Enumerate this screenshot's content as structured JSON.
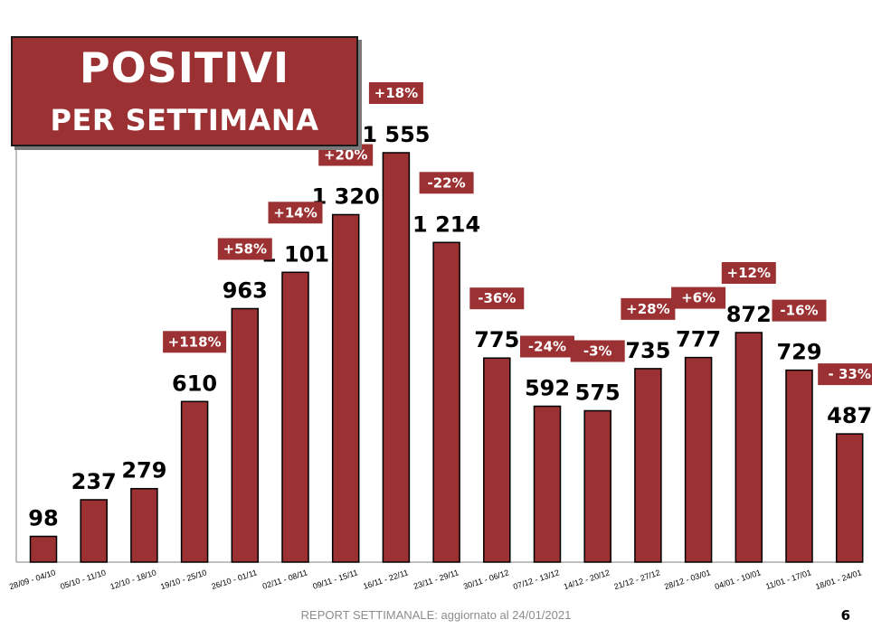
{
  "header": {
    "title_line1": "POSITIVI",
    "title_line2": "PER SETTIMANA"
  },
  "footer": {
    "text": "REPORT SETTIMANALE: aggiornato al 24/01/2021",
    "page_number": "6"
  },
  "colors": {
    "bar": "#9b3132",
    "badge": "#9b3132",
    "axis": "#808080"
  },
  "chart_data": {
    "type": "bar",
    "title": "POSITIVI PER SETTIMANA",
    "categories": [
      "28/09 - 04/10",
      "05/10 - 11/10",
      "12/10 - 18/10",
      "19/10 - 25/10",
      "26/10 - 01/11",
      "02/11 - 08/11",
      "09/11 - 15/11",
      "16/11 - 22/11",
      "23/11 - 29/11",
      "30/11 - 06/12",
      "07/12 - 13/12",
      "14/12 - 20/12",
      "21/12 - 27/12",
      "28/12 - 03/01",
      "04/01 - 10/01",
      "11/01 - 17/01",
      "18/01 - 24/01"
    ],
    "values": [
      98,
      237,
      279,
      610,
      963,
      1101,
      1320,
      1555,
      1214,
      775,
      592,
      575,
      735,
      777,
      872,
      729,
      487
    ],
    "value_labels": [
      "98",
      "237",
      "279",
      "610",
      "963",
      "1 101",
      "1 320",
      "1 555",
      "1 214",
      "775",
      "592",
      "575",
      "735",
      "777",
      "872",
      "729",
      "487"
    ],
    "change_labels": [
      "",
      "",
      "",
      "+118%",
      "+58%",
      "+14%",
      "+20%",
      "+18%",
      "-22%",
      "-36%",
      "-24%",
      "-3%",
      "+28%",
      "+6%",
      "+12%",
      "-16%",
      "- 33%"
    ],
    "ylim": [
      0,
      1555
    ],
    "grid": false,
    "legend": "none"
  }
}
